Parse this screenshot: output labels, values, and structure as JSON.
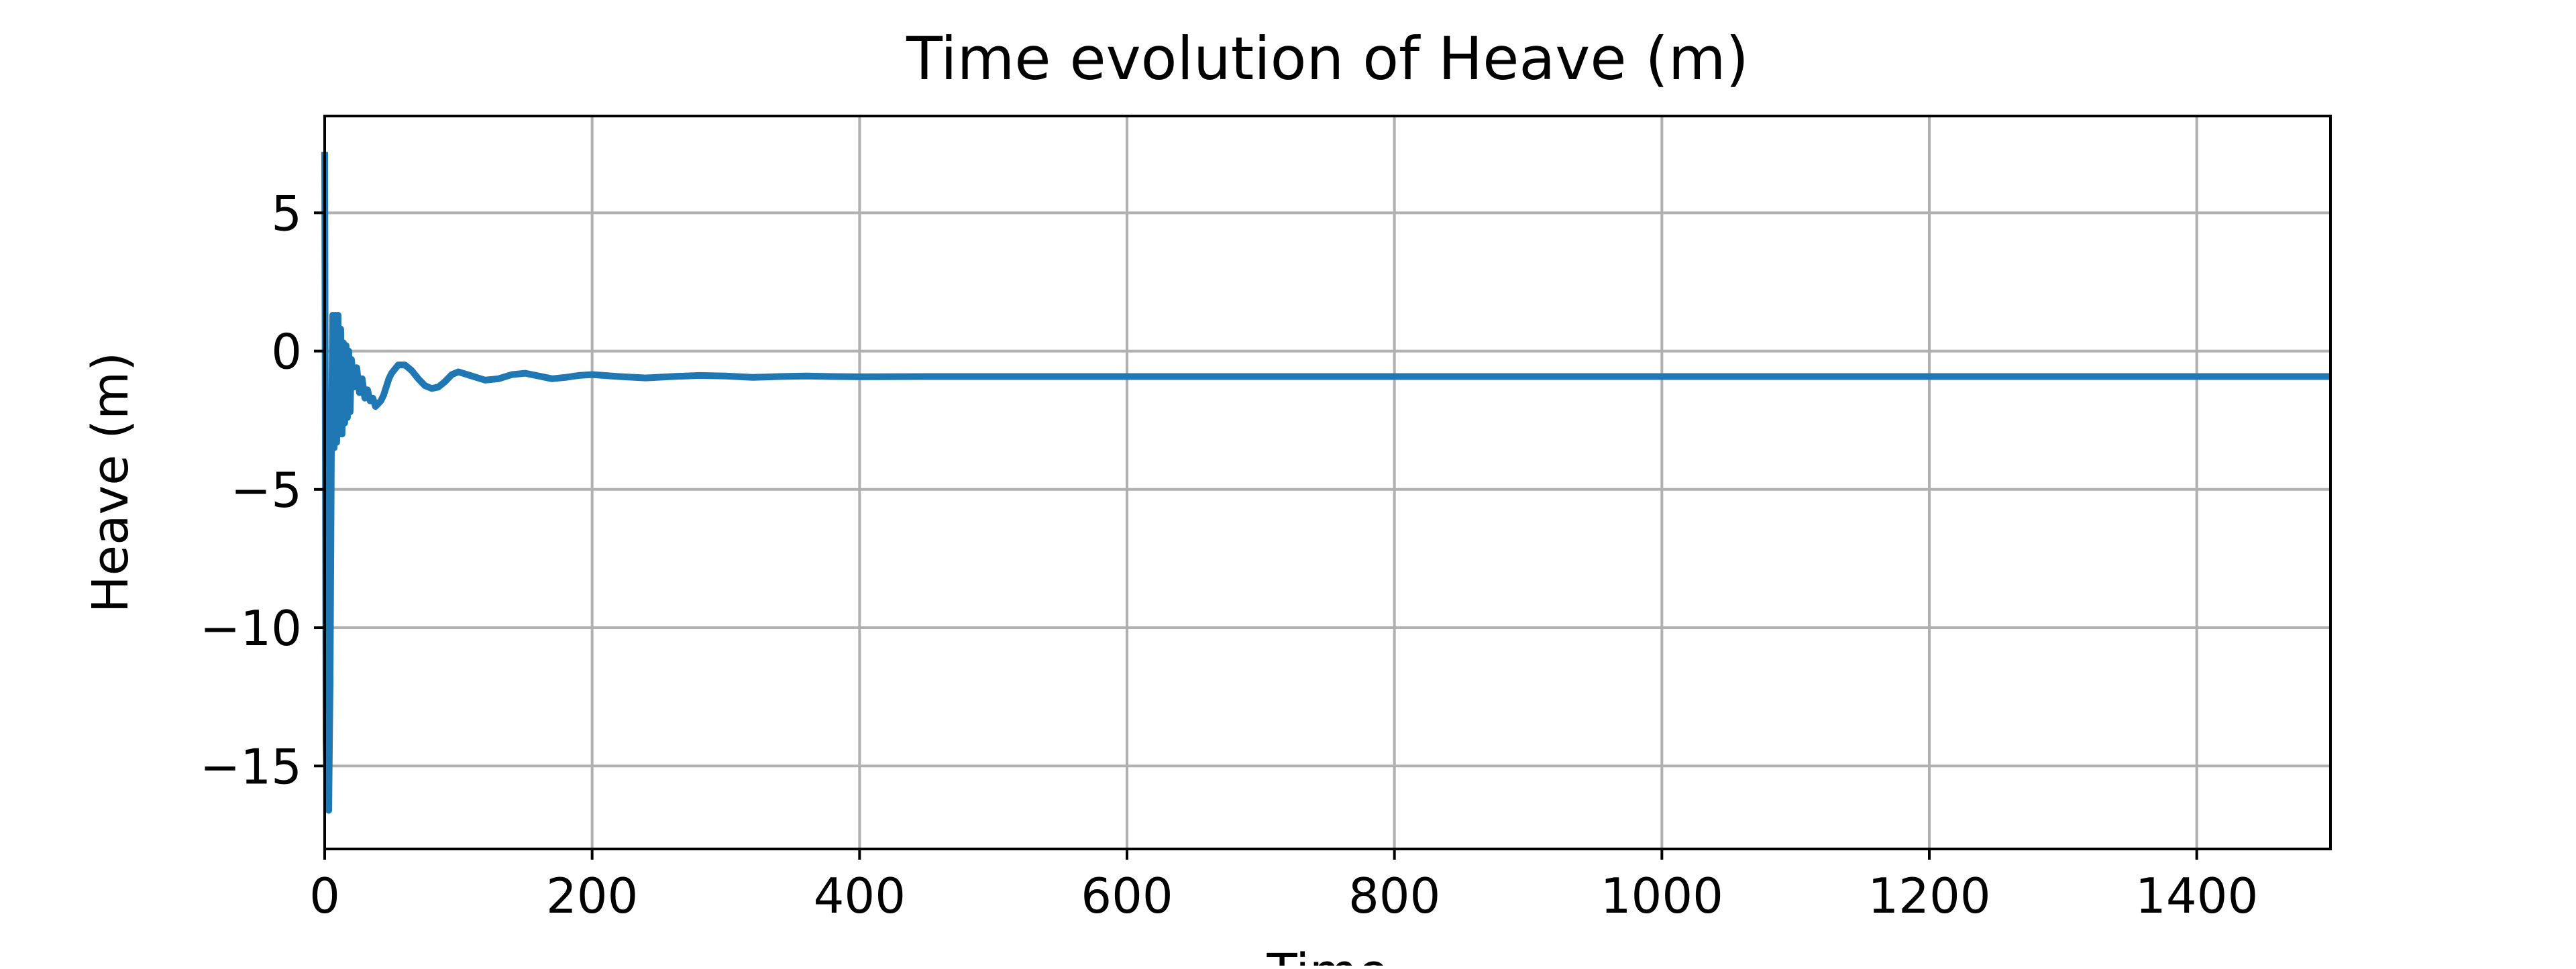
{
  "chart_data": {
    "type": "line",
    "title": "Time evolution of Heave (m)",
    "xlabel": "Time",
    "ylabel": "Heave (m)",
    "xlim": [
      0,
      1500
    ],
    "ylim": [
      -18,
      8.5
    ],
    "grid": true,
    "xticks": [
      0,
      200,
      400,
      600,
      800,
      1000,
      1200,
      1400
    ],
    "xtick_labels": [
      "0",
      "200",
      "400",
      "600",
      "800",
      "1000",
      "1200",
      "1400"
    ],
    "yticks": [
      5,
      0,
      -5,
      -10,
      -15
    ],
    "ytick_labels": [
      "5",
      "0",
      "−5",
      "−10",
      "−15"
    ],
    "series": [
      {
        "color": "#1f77b4",
        "x": [
          0,
          1,
          2,
          3,
          4,
          5,
          6,
          7,
          8,
          9,
          10,
          11,
          12,
          13,
          14,
          15,
          16,
          17,
          18,
          19,
          20,
          22,
          24,
          26,
          28,
          30,
          32,
          34,
          36,
          38,
          40,
          42,
          44,
          46,
          48,
          50,
          55,
          60,
          65,
          70,
          75,
          80,
          85,
          90,
          95,
          100,
          110,
          120,
          130,
          140,
          150,
          160,
          170,
          180,
          190,
          200,
          220,
          240,
          260,
          280,
          300,
          320,
          340,
          360,
          380,
          400,
          450,
          500,
          600,
          800,
          1000,
          1200,
          1400,
          1500
        ],
        "y": [
          7.2,
          -14.0,
          -16.5,
          -16.6,
          -12.0,
          -3.5,
          1.3,
          -3.5,
          1.3,
          -3.3,
          1.3,
          -3.0,
          0.8,
          -3.0,
          0.3,
          -2.6,
          0.2,
          -2.4,
          0.0,
          -2.2,
          -0.3,
          -1.3,
          -0.6,
          -1.5,
          -1.0,
          -1.7,
          -1.4,
          -1.8,
          -1.7,
          -2.0,
          -1.9,
          -1.8,
          -1.6,
          -1.3,
          -1.0,
          -0.8,
          -0.5,
          -0.5,
          -0.7,
          -1.0,
          -1.25,
          -1.35,
          -1.3,
          -1.1,
          -0.85,
          -0.75,
          -0.9,
          -1.05,
          -1.0,
          -0.85,
          -0.8,
          -0.9,
          -1.0,
          -0.95,
          -0.88,
          -0.85,
          -0.92,
          -0.97,
          -0.92,
          -0.88,
          -0.9,
          -0.95,
          -0.92,
          -0.9,
          -0.92,
          -0.93,
          -0.92,
          -0.92,
          -0.92,
          -0.92,
          -0.92,
          -0.92,
          -0.92,
          -0.92
        ]
      }
    ]
  }
}
